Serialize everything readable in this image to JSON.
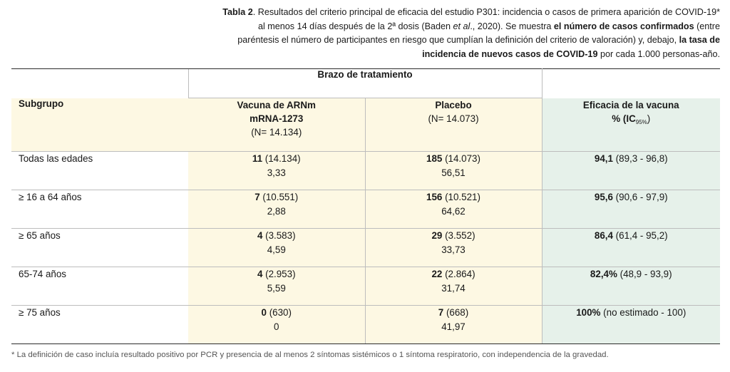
{
  "caption": {
    "label": "Tabla 2",
    "text_a": ". Resultados del criterio principal de eficacia del estudio P301: incidencia o casos de primera aparición de COVID-19* al menos 14 días después de la 2ª dosis (Baden ",
    "et_al": "et al",
    "text_b": "., 2020). Se muestra ",
    "bold_1": "el número de casos confirmados",
    "text_c": " (entre paréntesis el número de participantes en riesgo que cumplían la definición del criterio de valoración) y, debajo, ",
    "bold_2": "la tasa de incidencia de nuevos casos de COVID-19",
    "text_d": " por cada 1.000 personas-año."
  },
  "table": {
    "group_header": "Brazo de tratamiento",
    "headers": {
      "subgroup": "Subgrupo",
      "vaccine_line1": "Vacuna de ARNm",
      "vaccine_line2": "mRNA-1273",
      "vaccine_n": "(N= 14.134)",
      "placebo": "Placebo",
      "placebo_n": "(N= 14.073)",
      "efficacy": "Eficacia de la vacuna",
      "efficacy_unit": "% (IC",
      "efficacy_sub": "95%",
      "efficacy_close": ")"
    },
    "rows": [
      {
        "subgroup": "Todas las edades",
        "vaccine_cases": "11",
        "vaccine_n": " (14.134)",
        "vaccine_rate": "3,33",
        "placebo_cases": "185",
        "placebo_n": " (14.073)",
        "placebo_rate": "56,51",
        "efficacy": "94,1",
        "efficacy_ci": " (89,3 - 96,8)"
      },
      {
        "subgroup": "≥ 16 a 64 años",
        "vaccine_cases": "7",
        "vaccine_n": " (10.551)",
        "vaccine_rate": "2,88",
        "placebo_cases": "156",
        "placebo_n": " (10.521)",
        "placebo_rate": "64,62",
        "efficacy": "95,6",
        "efficacy_ci": " (90,6 - 97,9)"
      },
      {
        "subgroup": "≥ 65 años",
        "vaccine_cases": "4",
        "vaccine_n": " (3.583)",
        "vaccine_rate": "4,59",
        "placebo_cases": "29",
        "placebo_n": " (3.552)",
        "placebo_rate": "33,73",
        "efficacy": "86,4",
        "efficacy_ci": " (61,4 - 95,2)"
      },
      {
        "subgroup": "65-74 años",
        "vaccine_cases": "4",
        "vaccine_n": " (2.953)",
        "vaccine_rate": "5,59",
        "placebo_cases": "22",
        "placebo_n": " (2.864)",
        "placebo_rate": "31,74",
        "efficacy": "82,4%",
        "efficacy_ci": " (48,9 - 93,9)"
      },
      {
        "subgroup": "≥ 75 años",
        "vaccine_cases": "0",
        "vaccine_n": " (630)",
        "vaccine_rate": "0",
        "placebo_cases": "7",
        "placebo_n": " (668)",
        "placebo_rate": "41,97",
        "efficacy": "100%",
        "efficacy_ci": " (no estimado - 100)"
      }
    ]
  },
  "footnote": "* La definición de caso incluía resultado positivo por PCR y presencia de al menos 2 síntomas sistémicos o 1 síntoma respiratorio, con independencia de la gravedad.",
  "colors": {
    "vaccine_placebo_bg": "#fdf8e3",
    "efficacy_bg": "#e6f1ea",
    "rule": "#2b2b2b"
  }
}
